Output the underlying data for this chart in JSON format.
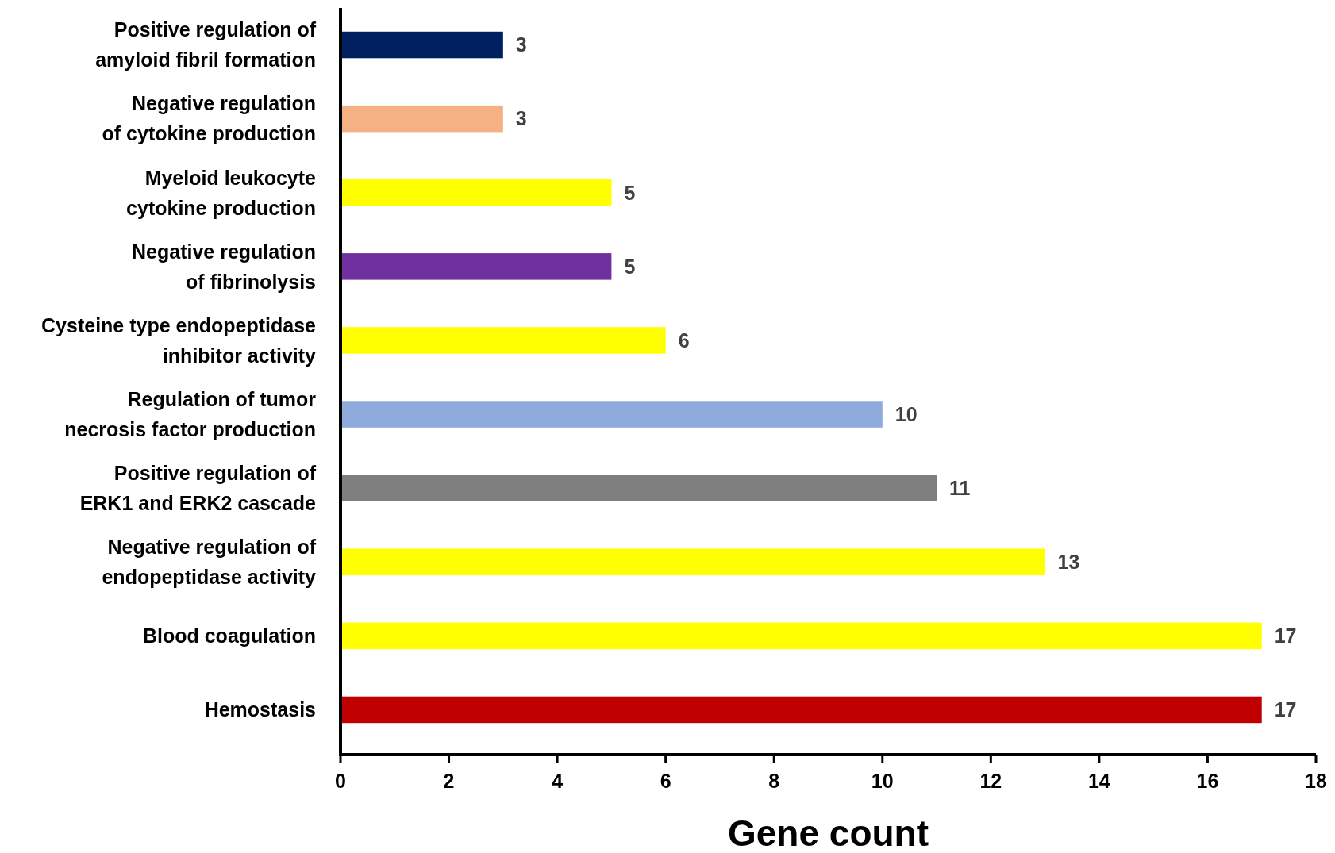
{
  "chart_data": {
    "type": "bar",
    "orientation": "horizontal",
    "xlabel": "Gene count",
    "categories": [
      "Positive regulation of amyloid fibril formation",
      "Negative regulation of cytokine production",
      "Myeloid leukocyte cytokine production",
      "Negative regulation of fibrinolysis",
      "Cysteine type endopeptidase inhibitor activity",
      "Regulation of tumor necrosis factor production",
      "Positive regulation of ERK1 and ERK2 cascade",
      "Negative regulation of endopeptidase activity",
      "Blood coagulation",
      "Hemostasis"
    ],
    "values": [
      3,
      3,
      5,
      5,
      6,
      10,
      11,
      13,
      17,
      17
    ],
    "colors": [
      "#002060",
      "#f4b183",
      "#ffff00",
      "#7030a0",
      "#ffff00",
      "#8faadc",
      "#7f7f7f",
      "#ffff00",
      "#ffff00",
      "#c00000"
    ],
    "xlim": [
      0,
      18
    ],
    "xticks": [
      0,
      2,
      4,
      6,
      8,
      10,
      12,
      14,
      16,
      18
    ],
    "data_labels": true,
    "grid": false
  }
}
